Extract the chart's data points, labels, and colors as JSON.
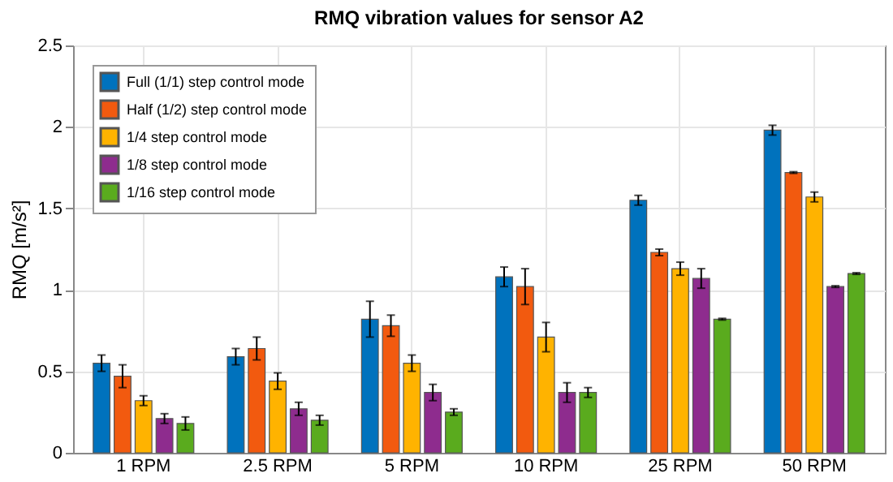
{
  "chart_data": {
    "type": "bar",
    "title": "RMQ vibration values for sensor A2",
    "ylabel": "RMQ [m/s²]",
    "categories": [
      "1 RPM",
      "2.5 RPM",
      "5 RPM",
      "10 RPM",
      "25 RPM",
      "50 RPM"
    ],
    "series": [
      {
        "name": "Full (1/1) step control mode",
        "color": "#0072bd",
        "values": [
          0.55,
          0.59,
          0.82,
          1.08,
          1.55,
          1.98
        ],
        "errors": [
          0.05,
          0.05,
          0.11,
          0.06,
          0.03,
          0.03
        ]
      },
      {
        "name": "Half (1/2) step control mode",
        "color": "#f25a0f",
        "values": [
          0.47,
          0.64,
          0.78,
          1.02,
          1.23,
          1.72
        ],
        "errors": [
          0.07,
          0.07,
          0.065,
          0.11,
          0.02,
          0.005
        ]
      },
      {
        "name": "1/4 step control mode",
        "color": "#ffb300",
        "values": [
          0.32,
          0.44,
          0.55,
          0.71,
          1.13,
          1.57
        ],
        "errors": [
          0.03,
          0.05,
          0.05,
          0.09,
          0.04,
          0.03
        ]
      },
      {
        "name": "1/8 step control mode",
        "color": "#8e2c8e",
        "values": [
          0.21,
          0.27,
          0.37,
          0.37,
          1.07,
          1.02
        ],
        "errors": [
          0.03,
          0.04,
          0.05,
          0.06,
          0.06,
          0.005
        ]
      },
      {
        "name": "1/16 step control mode",
        "color": "#5aab1e",
        "values": [
          0.18,
          0.2,
          0.25,
          0.37,
          0.82,
          1.1
        ],
        "errors": [
          0.04,
          0.03,
          0.02,
          0.03,
          0.005,
          0.005
        ]
      }
    ],
    "ylim": [
      0,
      2.5
    ],
    "yticks": [
      0,
      0.5,
      1,
      1.5,
      2,
      2.5
    ],
    "grid": true,
    "legend": "top left"
  }
}
